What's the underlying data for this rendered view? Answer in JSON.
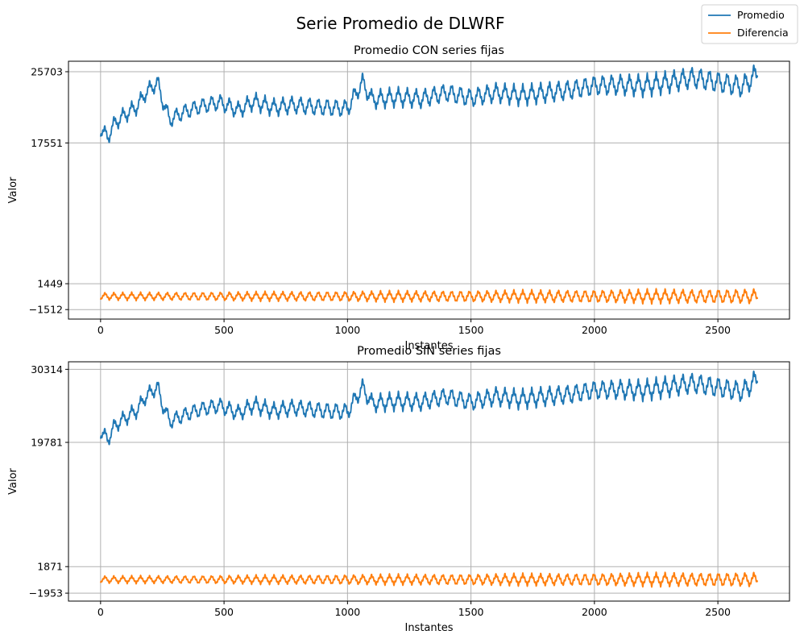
{
  "figure": {
    "suptitle": "Serie Promedio de DLWRF",
    "legend": {
      "placement": "upper-right",
      "entries": [
        {
          "label": "Promedio",
          "color": "#1f77b4"
        },
        {
          "label": "Diferencia",
          "color": "#ff7f0e"
        }
      ]
    }
  },
  "chart_data": [
    {
      "type": "line",
      "title": "Promedio CON series fijas",
      "xlabel": "Instantes",
      "ylabel": "Valor",
      "xlim": [
        -130,
        2790
      ],
      "ylim": [
        -2600,
        26900
      ],
      "xticks": [
        0,
        500,
        1000,
        1500,
        2000,
        2500
      ],
      "xtick_labels": [
        "0",
        "500",
        "1000",
        "1500",
        "2000",
        "2500"
      ],
      "yticks": [
        -1512,
        1449,
        17551,
        25703
      ],
      "ytick_labels": [
        "−1512",
        "1449",
        "17551",
        "25703"
      ],
      "grid": true,
      "series": [
        {
          "name": "Promedio",
          "color": "#1f77b4",
          "points": [
            [
              0,
              19100
            ],
            [
              30,
              18200
            ],
            [
              40,
              18900
            ],
            [
              60,
              19900
            ],
            [
              100,
              20800
            ],
            [
              150,
              21800
            ],
            [
              180,
              23200
            ],
            [
              230,
              24500
            ],
            [
              250,
              22500
            ],
            [
              280,
              20200
            ],
            [
              330,
              21000
            ],
            [
              400,
              21700
            ],
            [
              480,
              22200
            ],
            [
              560,
              21300
            ],
            [
              620,
              22300
            ],
            [
              700,
              21600
            ],
            [
              780,
              21900
            ],
            [
              860,
              21700
            ],
            [
              920,
              21600
            ],
            [
              1000,
              21500
            ],
            [
              1060,
              24500
            ],
            [
              1100,
              22500
            ],
            [
              1200,
              22800
            ],
            [
              1300,
              22600
            ],
            [
              1400,
              23300
            ],
            [
              1500,
              22700
            ],
            [
              1600,
              23300
            ],
            [
              1700,
              23000
            ],
            [
              1800,
              23300
            ],
            [
              1900,
              23600
            ],
            [
              2000,
              24100
            ],
            [
              2100,
              24200
            ],
            [
              2200,
              24100
            ],
            [
              2300,
              24500
            ],
            [
              2400,
              25000
            ],
            [
              2500,
              24500
            ],
            [
              2600,
              24000
            ],
            [
              2660,
              25500
            ]
          ],
          "oscillation": {
            "period": 36,
            "amplitude": 1500,
            "amplitude_growth": 0.45
          }
        },
        {
          "name": "Diferencia",
          "color": "#ff7f0e",
          "points": [
            [
              0,
              0
            ],
            [
              2660,
              0
            ]
          ],
          "oscillation": {
            "period": 36,
            "amplitude": 700,
            "amplitude_growth": 1.0
          }
        }
      ]
    },
    {
      "type": "line",
      "title": "Promedio SIN series fijas",
      "xlabel": "Instantes",
      "ylabel": "Valor",
      "xlim": [
        -130,
        2790
      ],
      "ylim": [
        -3100,
        31400
      ],
      "xticks": [
        0,
        500,
        1000,
        1500,
        2000,
        2500
      ],
      "xtick_labels": [
        "0",
        "500",
        "1000",
        "1500",
        "2000",
        "2500"
      ],
      "yticks": [
        -1953,
        1871,
        19781,
        30314
      ],
      "ytick_labels": [
        "−1953",
        "1871",
        "19781",
        "30314"
      ],
      "grid": true,
      "series": [
        {
          "name": "Promedio",
          "color": "#1f77b4",
          "points": [
            [
              0,
              21300
            ],
            [
              30,
              20200
            ],
            [
              40,
              21000
            ],
            [
              60,
              22300
            ],
            [
              100,
              23300
            ],
            [
              150,
              24500
            ],
            [
              180,
              26300
            ],
            [
              230,
              27800
            ],
            [
              250,
              25300
            ],
            [
              280,
              22800
            ],
            [
              330,
              23600
            ],
            [
              400,
              24500
            ],
            [
              480,
              25100
            ],
            [
              560,
              24000
            ],
            [
              620,
              25200
            ],
            [
              700,
              24300
            ],
            [
              780,
              24800
            ],
            [
              860,
              24500
            ],
            [
              920,
              24300
            ],
            [
              1000,
              24200
            ],
            [
              1060,
              27700
            ],
            [
              1100,
              25400
            ],
            [
              1200,
              25700
            ],
            [
              1300,
              25600
            ],
            [
              1400,
              26400
            ],
            [
              1500,
              25600
            ],
            [
              1600,
              26400
            ],
            [
              1700,
              26000
            ],
            [
              1800,
              26400
            ],
            [
              1900,
              26700
            ],
            [
              2000,
              27300
            ],
            [
              2100,
              27400
            ],
            [
              2200,
              27300
            ],
            [
              2300,
              27800
            ],
            [
              2400,
              28300
            ],
            [
              2500,
              27700
            ],
            [
              2600,
              27100
            ],
            [
              2660,
              28900
            ]
          ],
          "oscillation": {
            "period": 36,
            "amplitude": 1800,
            "amplitude_growth": 0.45
          }
        },
        {
          "name": "Diferencia",
          "color": "#ff7f0e",
          "points": [
            [
              0,
              0
            ],
            [
              2660,
              0
            ]
          ],
          "oscillation": {
            "period": 36,
            "amplitude": 850,
            "amplitude_growth": 1.0
          }
        }
      ]
    }
  ]
}
